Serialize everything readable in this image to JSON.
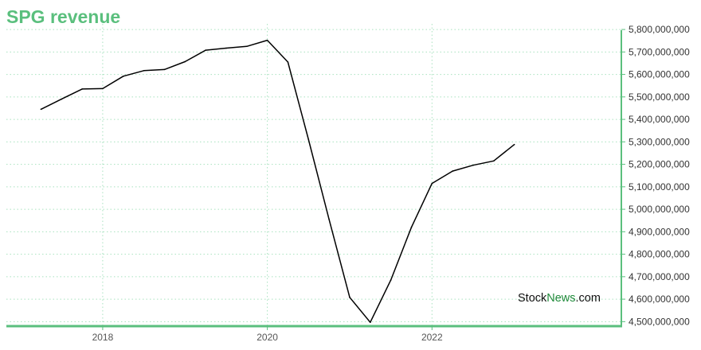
{
  "colors": {
    "accent": "#5abf7d",
    "line": "#000000",
    "grid": "#a8e2bf",
    "watermark_dark": "#111111",
    "watermark_green": "#1f8a3a"
  },
  "chart_data": {
    "type": "line",
    "title": "SPG revenue",
    "xlabel": "",
    "ylabel": "",
    "grid": true,
    "legend": "none",
    "xlim": [
      2016.83,
      2024.3
    ],
    "ylim": [
      4480000000,
      5825000000
    ],
    "x_ticks": [
      2018,
      2020,
      2022
    ],
    "x_tick_labels": [
      "2018",
      "2020",
      "2022"
    ],
    "y_ticks": [
      4500000000,
      4600000000,
      4700000000,
      4800000000,
      4900000000,
      5000000000,
      5100000000,
      5200000000,
      5300000000,
      5400000000,
      5500000000,
      5600000000,
      5700000000,
      5800000000
    ],
    "y_tick_labels": [
      "4,500,000,000",
      "4,600,000,000",
      "4,700,000,000",
      "4,800,000,000",
      "4,900,000,000",
      "5,000,000,000",
      "5,100,000,000",
      "5,200,000,000",
      "5,300,000,000",
      "5,400,000,000",
      "5,500,000,000",
      "5,600,000,000",
      "5,700,000,000",
      "5,800,000,000"
    ],
    "series": [
      {
        "x": [
          2017.25,
          2017.5,
          2017.75,
          2018.0,
          2018.25,
          2018.5,
          2018.75,
          2019.0,
          2019.25,
          2019.5,
          2019.75,
          2020.0,
          2020.25,
          2020.5,
          2020.75,
          2021.0,
          2021.25,
          2021.5,
          2021.75,
          2022.0,
          2022.25,
          2022.5,
          2022.75,
          2023.0
        ],
        "y": [
          5445000000,
          5490000000,
          5535000000,
          5537000000,
          5592000000,
          5617000000,
          5622000000,
          5657000000,
          5708000000,
          5717000000,
          5725000000,
          5752000000,
          5655000000,
          5310000000,
          4955000000,
          4608000000,
          4497000000,
          4685000000,
          4920000000,
          5115000000,
          5170000000,
          5196000000,
          5215000000,
          5288000000
        ]
      }
    ]
  },
  "watermark": {
    "part1": "Stock",
    "part2": "News",
    "part3": ".com"
  }
}
